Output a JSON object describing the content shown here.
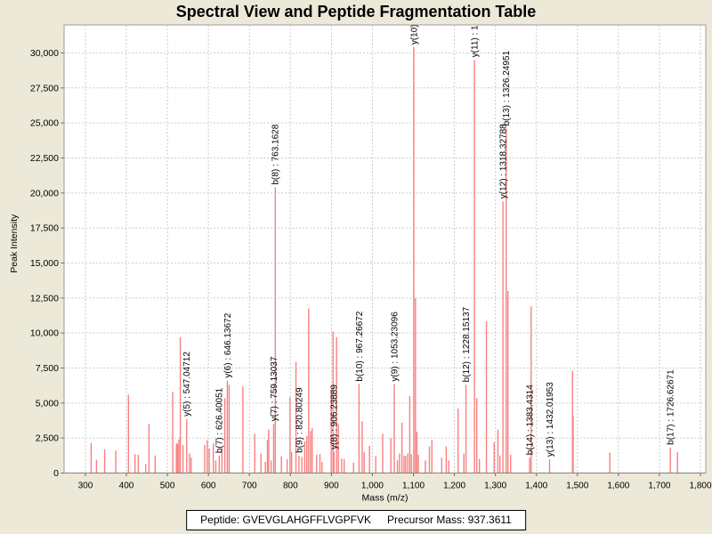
{
  "title": "Spectral View and Peptide Fragmentation Table",
  "info": {
    "peptide": "Peptide: GVEVGLAHGFFLVGPFVK",
    "precursor": "Precursor Mass: 937.3611"
  },
  "chart_data": {
    "type": "bar",
    "title": "Spectral View and Peptide Fragmentation Table",
    "xlabel": "Mass (m/z)",
    "ylabel": "Peak Intensity",
    "xlim": [
      248,
      1813
    ],
    "ylim": [
      0,
      32000
    ],
    "grid": true,
    "colors": {
      "peak": "#f98080",
      "background": "#ece9d8",
      "plot_background": "#ffffff",
      "gridline": "#cccccc",
      "border": "#9b9b9b",
      "axis_line": "#808080",
      "tick": "#666666",
      "text": "#000000"
    },
    "xticks": [
      {
        "v": 300,
        "label": "300"
      },
      {
        "v": 400,
        "label": "400"
      },
      {
        "v": 500,
        "label": "500"
      },
      {
        "v": 600,
        "label": "600"
      },
      {
        "v": 700,
        "label": "700"
      },
      {
        "v": 800,
        "label": "800"
      },
      {
        "v": 900,
        "label": "900"
      },
      {
        "v": 1000,
        "label": "1,000"
      },
      {
        "v": 1100,
        "label": "1,100"
      },
      {
        "v": 1200,
        "label": "1,200"
      },
      {
        "v": 1300,
        "label": "1,300"
      },
      {
        "v": 1400,
        "label": "1,400"
      },
      {
        "v": 1500,
        "label": "1,500"
      },
      {
        "v": 1600,
        "label": "1,600"
      },
      {
        "v": 1700,
        "label": "1,700"
      },
      {
        "v": 1800,
        "label": "1,800"
      }
    ],
    "yticks": [
      {
        "v": 0,
        "label": "0"
      },
      {
        "v": 2500,
        "label": "2,500"
      },
      {
        "v": 5000,
        "label": "5,000"
      },
      {
        "v": 7500,
        "label": "7,500"
      },
      {
        "v": 10000,
        "label": "10,000"
      },
      {
        "v": 12500,
        "label": "12,500"
      },
      {
        "v": 15000,
        "label": "15,000"
      },
      {
        "v": 17500,
        "label": "17,500"
      },
      {
        "v": 20000,
        "label": "20,000"
      },
      {
        "v": 22500,
        "label": "22,500"
      },
      {
        "v": 25000,
        "label": "25,000"
      },
      {
        "v": 27500,
        "label": "27,500"
      },
      {
        "v": 30000,
        "label": "30,000"
      }
    ],
    "peaks": [
      [
        314,
        2150
      ],
      [
        327,
        950
      ],
      [
        347,
        1700
      ],
      [
        374,
        1600
      ],
      [
        405,
        5600
      ],
      [
        421,
        1350
      ],
      [
        429,
        1300
      ],
      [
        447,
        650
      ],
      [
        455,
        3500
      ],
      [
        470,
        1250
      ],
      [
        513,
        5800
      ],
      [
        522,
        2100
      ],
      [
        525,
        2100
      ],
      [
        528,
        2400
      ],
      [
        531.5,
        9700
      ],
      [
        538,
        2000
      ],
      [
        547.04712,
        3850,
        "y(5) : 547.04712"
      ],
      [
        554,
        1400
      ],
      [
        558,
        1100
      ],
      [
        591,
        2000
      ],
      [
        597,
        2350
      ],
      [
        602,
        1750
      ],
      [
        612,
        2100
      ],
      [
        618,
        900
      ],
      [
        626.40051,
        1230,
        "b(7) : 626.40051"
      ],
      [
        633,
        1800
      ],
      [
        640,
        5350
      ],
      [
        646.13672,
        6600,
        "y(6) : 646.13672"
      ],
      [
        650.5,
        6300
      ],
      [
        684,
        6200
      ],
      [
        713,
        2800
      ],
      [
        728,
        1400
      ],
      [
        739,
        800
      ],
      [
        744,
        2350
      ],
      [
        747,
        3100
      ],
      [
        753,
        900
      ],
      [
        759.13037,
        3500,
        "y(7) : 759.13037"
      ],
      [
        763.1628,
        20400,
        "b(8) : 763.1628"
      ],
      [
        778,
        1200
      ],
      [
        792,
        1000
      ],
      [
        799,
        5400
      ],
      [
        803,
        1500
      ],
      [
        813.5,
        7950
      ],
      [
        820.80249,
        1250,
        "b(9) : 820.80249"
      ],
      [
        828,
        1150
      ],
      [
        835,
        2250
      ],
      [
        840,
        2650
      ],
      [
        844.5,
        11750
      ],
      [
        849,
        3000
      ],
      [
        853,
        3200
      ],
      [
        864,
        1300
      ],
      [
        872,
        1350
      ],
      [
        877,
        800
      ],
      [
        899.5,
        5950
      ],
      [
        904,
        10100
      ],
      [
        906.23889,
        1500,
        "y(8) : 906.23889"
      ],
      [
        912.5,
        9700
      ],
      [
        917,
        3500
      ],
      [
        925,
        1050
      ],
      [
        931,
        1000
      ],
      [
        954,
        750
      ],
      [
        967.26672,
        6350,
        "b(10) : 967.26672"
      ],
      [
        975,
        3700
      ],
      [
        980,
        1500
      ],
      [
        993,
        1950
      ],
      [
        1008,
        1200
      ],
      [
        1025,
        2800
      ],
      [
        1045,
        2500
      ],
      [
        1053.23096,
        6350,
        "y(9) : 1053.23096"
      ],
      [
        1061,
        900
      ],
      [
        1066,
        1400
      ],
      [
        1072,
        3600
      ],
      [
        1077,
        1250
      ],
      [
        1081,
        1200
      ],
      [
        1086,
        1400
      ],
      [
        1091,
        5500
      ],
      [
        1095,
        1350
      ],
      [
        1101,
        30400,
        "y(10)"
      ],
      [
        1105,
        12500
      ],
      [
        1108.5,
        2950
      ],
      [
        1112,
        1300
      ],
      [
        1129,
        900
      ],
      [
        1139,
        1900
      ],
      [
        1145,
        2350
      ],
      [
        1169,
        1100
      ],
      [
        1180,
        1900
      ],
      [
        1186,
        900
      ],
      [
        1209,
        4600
      ],
      [
        1223,
        1400
      ],
      [
        1228.15137,
        6300,
        "b(12) : 1228.15137"
      ],
      [
        1249,
        29500,
        "y(11) : 1"
      ],
      [
        1254.5,
        5350
      ],
      [
        1261,
        1000
      ],
      [
        1278,
        10830
      ],
      [
        1297,
        2200
      ],
      [
        1306,
        3100
      ],
      [
        1311,
        1250
      ],
      [
        1318.32788,
        19400,
        "y(12) : 1318.32788"
      ],
      [
        1326.24951,
        24600,
        "b(13) : 1326.24951"
      ],
      [
        1330.5,
        13000
      ],
      [
        1337,
        1300
      ],
      [
        1383.4314,
        1100,
        "b(14) : 1383.4314"
      ],
      [
        1387.2,
        11900
      ],
      [
        1432.01953,
        970,
        "y(13) : 1432.01953"
      ],
      [
        1488,
        7300
      ],
      [
        1489.5,
        4100
      ],
      [
        1579,
        1450
      ],
      [
        1726.62671,
        1820,
        "b(17) : 1726.62671"
      ],
      [
        1744,
        1500
      ]
    ]
  }
}
